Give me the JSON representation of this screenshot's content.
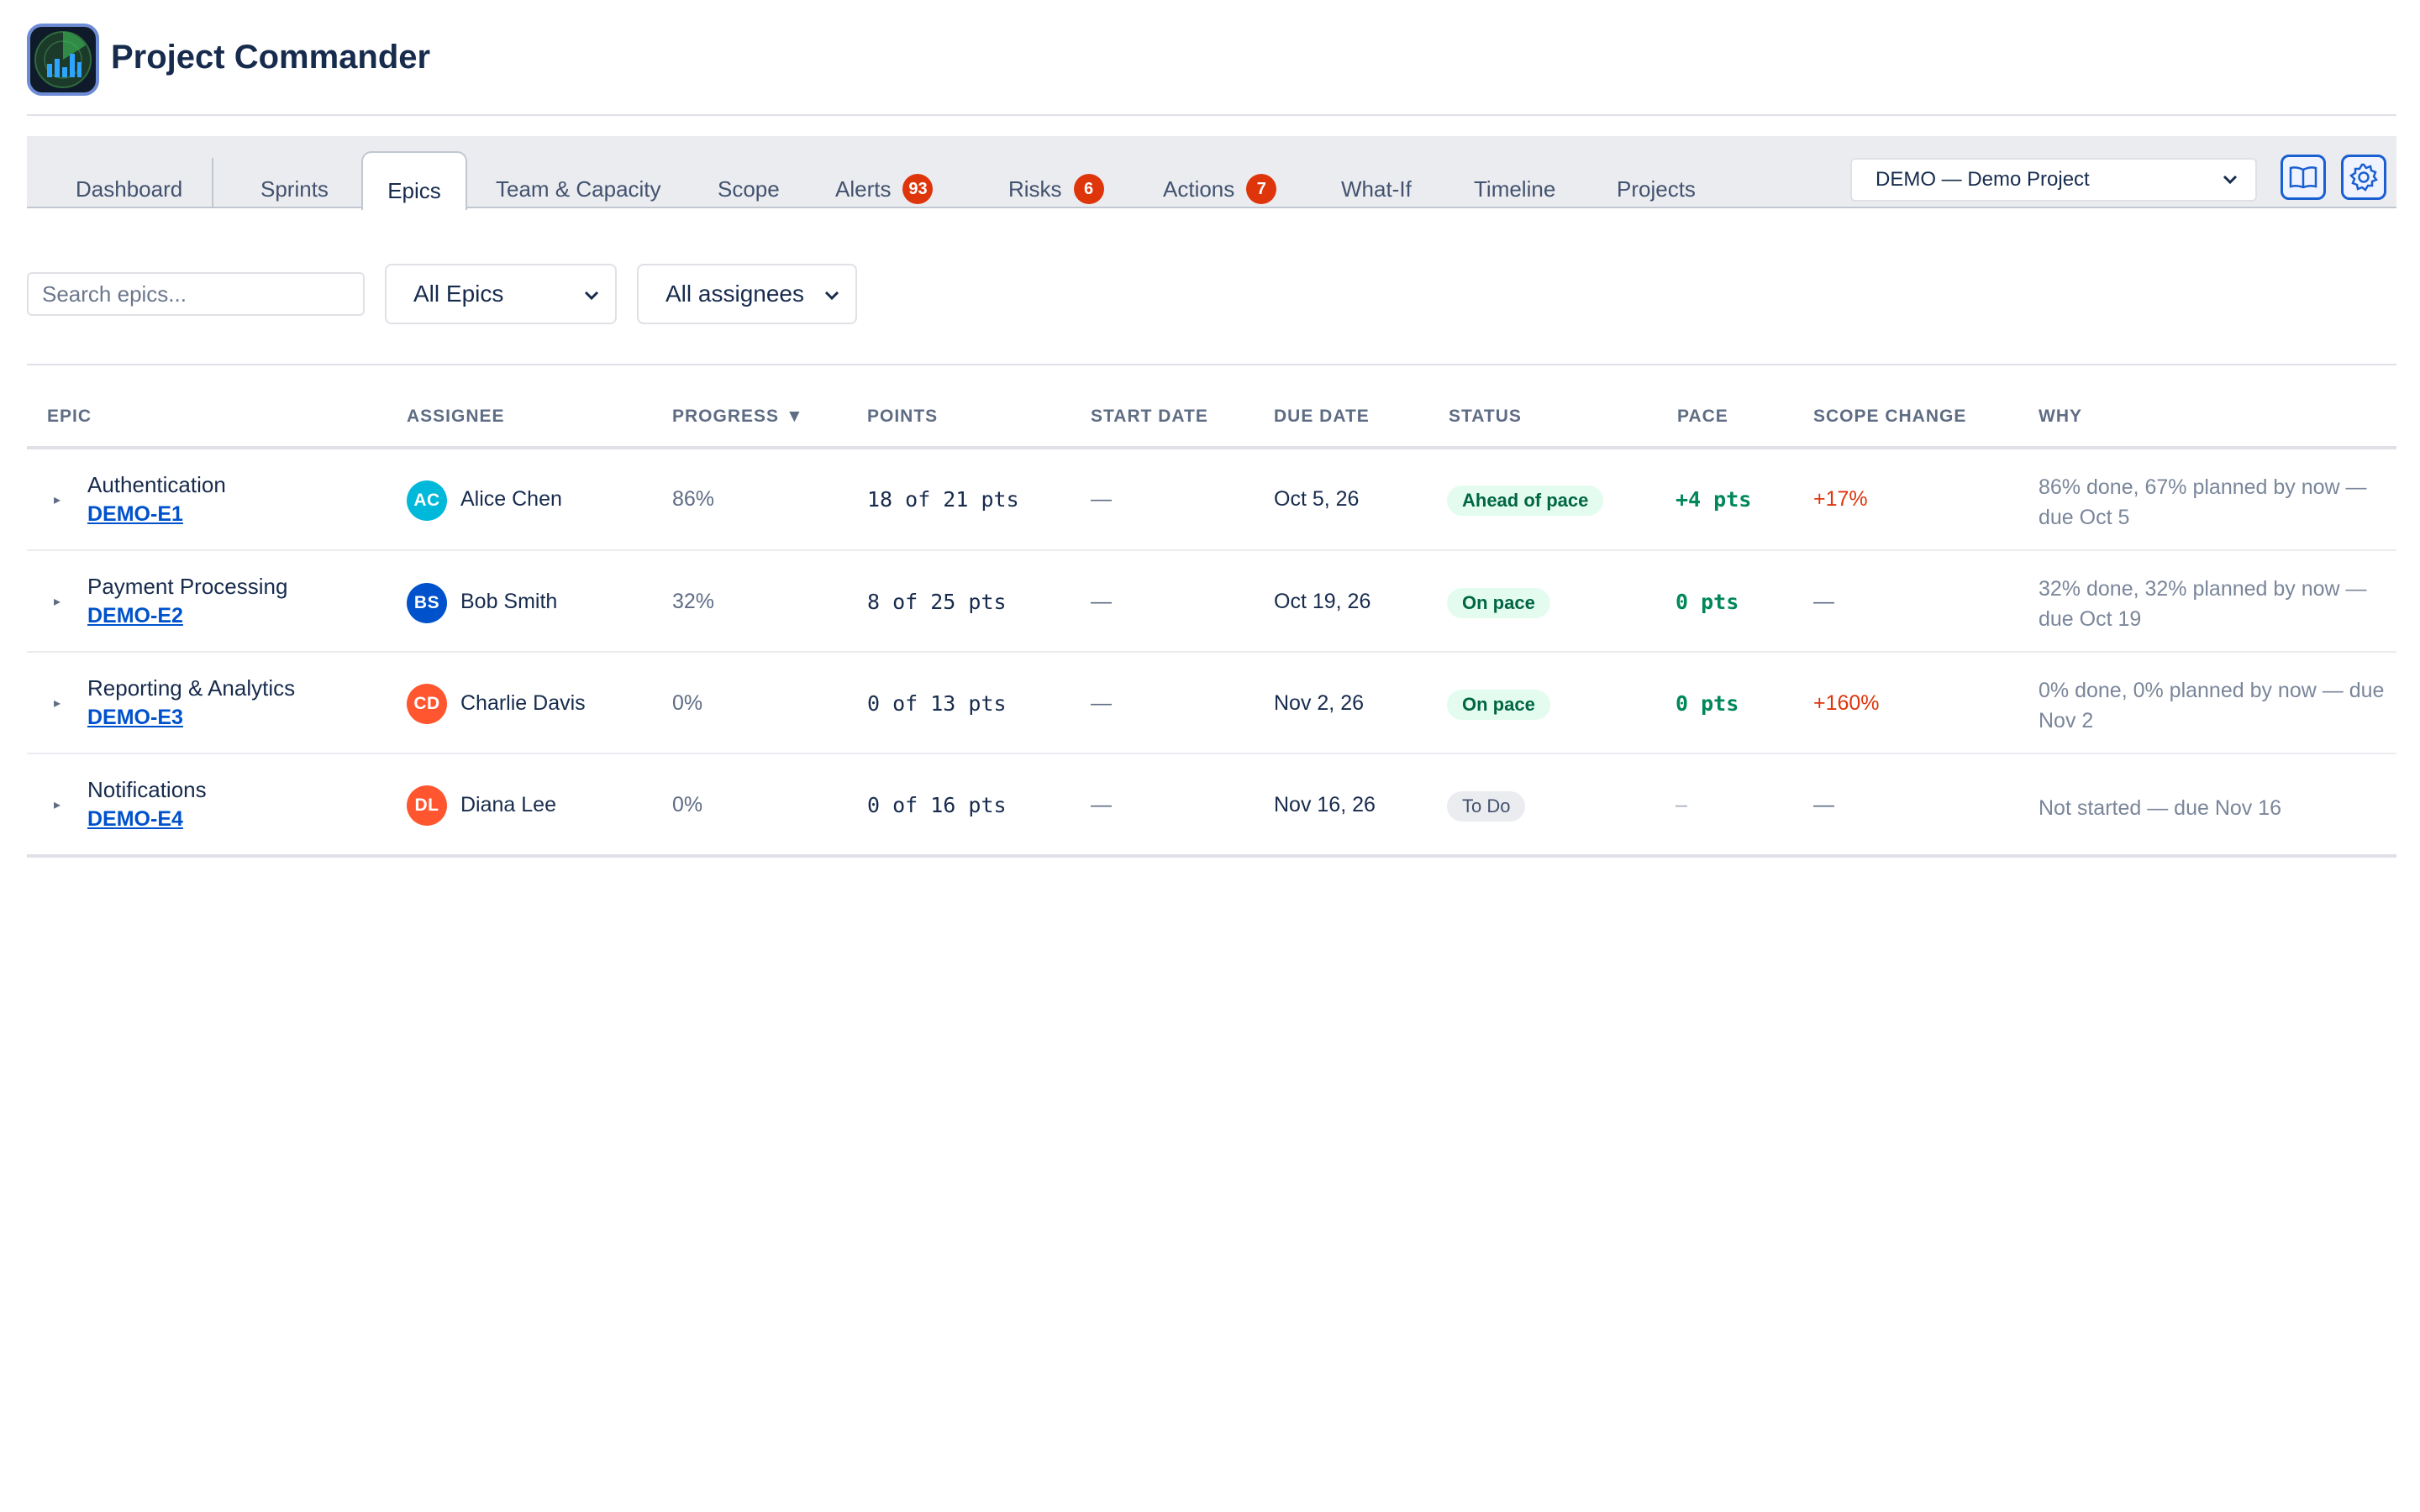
{
  "app": {
    "title": "Project Commander",
    "logo_icon": "radar-chart-logo"
  },
  "tabs": [
    {
      "label": "Dashboard"
    },
    {
      "label": "Sprints"
    },
    {
      "label": "Epics",
      "active": true
    },
    {
      "label": "Team & Capacity"
    },
    {
      "label": "Scope"
    },
    {
      "label": "Alerts",
      "badge": "93"
    },
    {
      "label": "Risks",
      "badge": "6"
    },
    {
      "label": "Actions",
      "badge": "7"
    },
    {
      "label": "What-If"
    },
    {
      "label": "Timeline"
    },
    {
      "label": "Projects"
    }
  ],
  "project_select": {
    "value": "DEMO — Demo Project"
  },
  "toolbar": {
    "docs_icon": "book-icon",
    "settings_icon": "gear-icon"
  },
  "filters": {
    "search_placeholder": "Search epics...",
    "epic_filter": "All Epics",
    "assignee_filter": "All assignees"
  },
  "table": {
    "headers": {
      "epic": "EPIC",
      "assignee": "ASSIGNEE",
      "progress": "PROGRESS",
      "progress_sort": "▼",
      "points": "POINTS",
      "start_date": "START DATE",
      "due_date": "DUE DATE",
      "status": "STATUS",
      "pace": "PACE",
      "scope_change": "SCOPE CHANGE",
      "why": "WHY"
    },
    "rows": [
      {
        "name": "Authentication",
        "key": "DEMO-E1",
        "avatar": "AC",
        "assignee": "Alice Chen",
        "avatar_color": "#00b8d9",
        "progress": "86%",
        "points": "18 of 21 pts",
        "start": "—",
        "due": "Oct 5, 26",
        "status": "Ahead of pace",
        "pace": "+4 pts",
        "scope": "+17%",
        "why": "86% done, 67% planned by now — due Oct 5"
      },
      {
        "name": "Payment Processing",
        "key": "DEMO-E2",
        "avatar": "BS",
        "assignee": "Bob Smith",
        "avatar_color": "#0052cc",
        "progress": "32%",
        "points": "8 of 25 pts",
        "start": "—",
        "due": "Oct 19, 26",
        "status": "On pace",
        "pace": "0 pts",
        "scope": "—",
        "why": "32% done, 32% planned by now — due Oct 19"
      },
      {
        "name": "Reporting & Analytics",
        "key": "DEMO-E3",
        "avatar": "CD",
        "assignee": "Charlie Davis",
        "avatar_color": "#ff5630",
        "progress": "0%",
        "points": "0 of 13 pts",
        "start": "—",
        "due": "Nov 2, 26",
        "status": "On pace",
        "pace": "0 pts",
        "scope": "+160%",
        "why": "0% done, 0% planned by now — due Nov 2"
      },
      {
        "name": "Notifications",
        "key": "DEMO-E4",
        "avatar": "DL",
        "assignee": "Diana Lee",
        "avatar_color": "#ff5630",
        "progress": "0%",
        "points": "0 of 16 pts",
        "start": "—",
        "due": "Nov 16, 26",
        "status": "To Do",
        "pace": "–",
        "scope": "—",
        "why": "Not started — due Nov 16"
      }
    ]
  },
  "colors": {
    "accent": "#0052cc",
    "badge_red": "#de350b",
    "pace_green": "#00875a",
    "ahead_pill_bg": "#e3fcef",
    "todo_pill_bg": "#ebecf0"
  }
}
